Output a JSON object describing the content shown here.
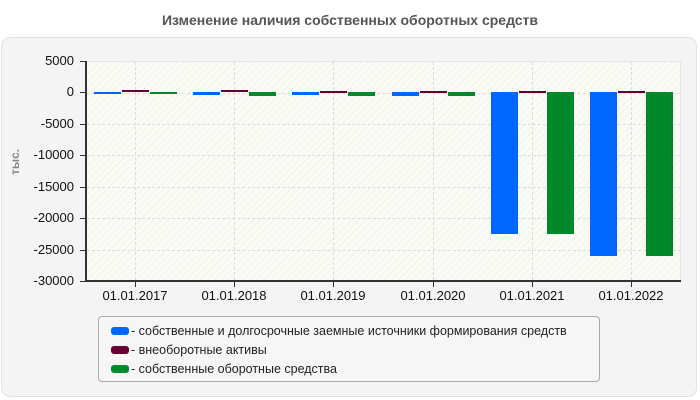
{
  "chart_data": {
    "type": "bar",
    "title": "Изменение наличия собственных оборотных средств",
    "xlabel": "",
    "ylabel": "тыс.",
    "ylim": [
      -30000,
      5000
    ],
    "yticks": [
      5000,
      0,
      -5000,
      -10000,
      -15000,
      -20000,
      -25000,
      -30000
    ],
    "ytick_labels": [
      "5000",
      "0",
      "-5000",
      "-10000",
      "-15000",
      "-20000",
      "-25000",
      "-30000"
    ],
    "categories": [
      "01.01.2017",
      "01.01.2018",
      "01.01.2019",
      "01.01.2020",
      "01.01.2021",
      "01.01.2022"
    ],
    "series": [
      {
        "name": "- собственные и долгосрочные заемные источники формирования средств",
        "color": "#0066ff",
        "values": [
          -100,
          -400,
          -400,
          -600,
          -22600,
          -26000
        ]
      },
      {
        "name": "- внеоборотные активы",
        "color": "#660033",
        "values": [
          400,
          400,
          300,
          300,
          300,
          300
        ]
      },
      {
        "name": "- собственные оборотные средства",
        "color": "#00882b",
        "values": [
          -100,
          -500,
          -500,
          -600,
          -22600,
          -26000
        ]
      }
    ],
    "grid": true,
    "legend_position": "bottom"
  }
}
